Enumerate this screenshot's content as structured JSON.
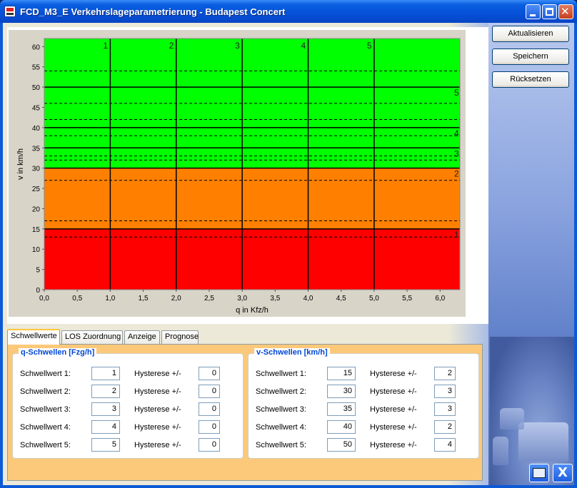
{
  "window": {
    "title": "FCD_M3_E Verkehrslageparametrierung - Budapest Concert"
  },
  "buttons": {
    "refresh": "Aktualisieren",
    "save": "Speichern",
    "reset": "Rücksetzen",
    "close": "X"
  },
  "tabs": [
    {
      "label": "Schwellwerte"
    },
    {
      "label": "LOS Zuordnung"
    },
    {
      "label": "Anzeige"
    },
    {
      "label": "Prognose"
    }
  ],
  "q_group": {
    "title": "q-Schwellen [Fzg/h]",
    "rows": [
      {
        "label": "Schwellwert 1:",
        "value": "1",
        "hyst_label": "Hysterese +/-",
        "hyst": "0"
      },
      {
        "label": "Schwellwert 2:",
        "value": "2",
        "hyst_label": "Hysterese +/-",
        "hyst": "0"
      },
      {
        "label": "Schwellwert 3:",
        "value": "3",
        "hyst_label": "Hysterese +/-",
        "hyst": "0"
      },
      {
        "label": "Schwellwert 4:",
        "value": "4",
        "hyst_label": "Hysterese +/-",
        "hyst": "0"
      },
      {
        "label": "Schwellwert 5:",
        "value": "5",
        "hyst_label": "Hysterese +/-",
        "hyst": "0"
      }
    ]
  },
  "v_group": {
    "title": "v-Schwellen [km/h]",
    "rows": [
      {
        "label": "Schwellwert 1:",
        "value": "15",
        "hyst_label": "Hysterese +/-",
        "hyst": "2"
      },
      {
        "label": "Schwellwert 2:",
        "value": "30",
        "hyst_label": "Hysterese +/-",
        "hyst": "3"
      },
      {
        "label": "Schwellwert 3:",
        "value": "35",
        "hyst_label": "Hysterese +/-",
        "hyst": "3"
      },
      {
        "label": "Schwellwert 4:",
        "value": "40",
        "hyst_label": "Hysterese +/-",
        "hyst": "2"
      },
      {
        "label": "Schwellwert 5:",
        "value": "50",
        "hyst_label": "Hysterese +/-",
        "hyst": "4"
      }
    ]
  },
  "chart_data": {
    "type": "area",
    "xlabel": "q in Kfz/h",
    "ylabel": "v in km/h",
    "xlim": [
      0,
      6.3
    ],
    "ylim": [
      0,
      62
    ],
    "xticks": [
      "0,0",
      "0,5",
      "1,0",
      "1,5",
      "2,0",
      "2,5",
      "3,0",
      "3,5",
      "4,0",
      "4,5",
      "5,0",
      "5,5",
      "6,0"
    ],
    "yticks": [
      "0",
      "5",
      "10",
      "15",
      "20",
      "25",
      "30",
      "35",
      "40",
      "45",
      "50",
      "55",
      "60"
    ],
    "bands": [
      {
        "from": 0,
        "to": 15,
        "color": "#ff0000"
      },
      {
        "from": 15,
        "to": 30,
        "color": "#ff8000"
      },
      {
        "from": 30,
        "to": 62,
        "color": "#00ff00"
      }
    ],
    "q_thresholds": [
      1,
      2,
      3,
      4,
      5
    ],
    "q_labels": [
      "1",
      "2",
      "3",
      "4",
      "5"
    ],
    "v_thresholds": [
      15,
      30,
      35,
      40,
      50
    ],
    "v_labels": [
      "1",
      "2",
      "3",
      "4",
      "5"
    ],
    "v_hysteresis_lines": [
      13,
      17,
      27,
      32,
      33,
      38,
      42,
      46,
      54
    ]
  }
}
